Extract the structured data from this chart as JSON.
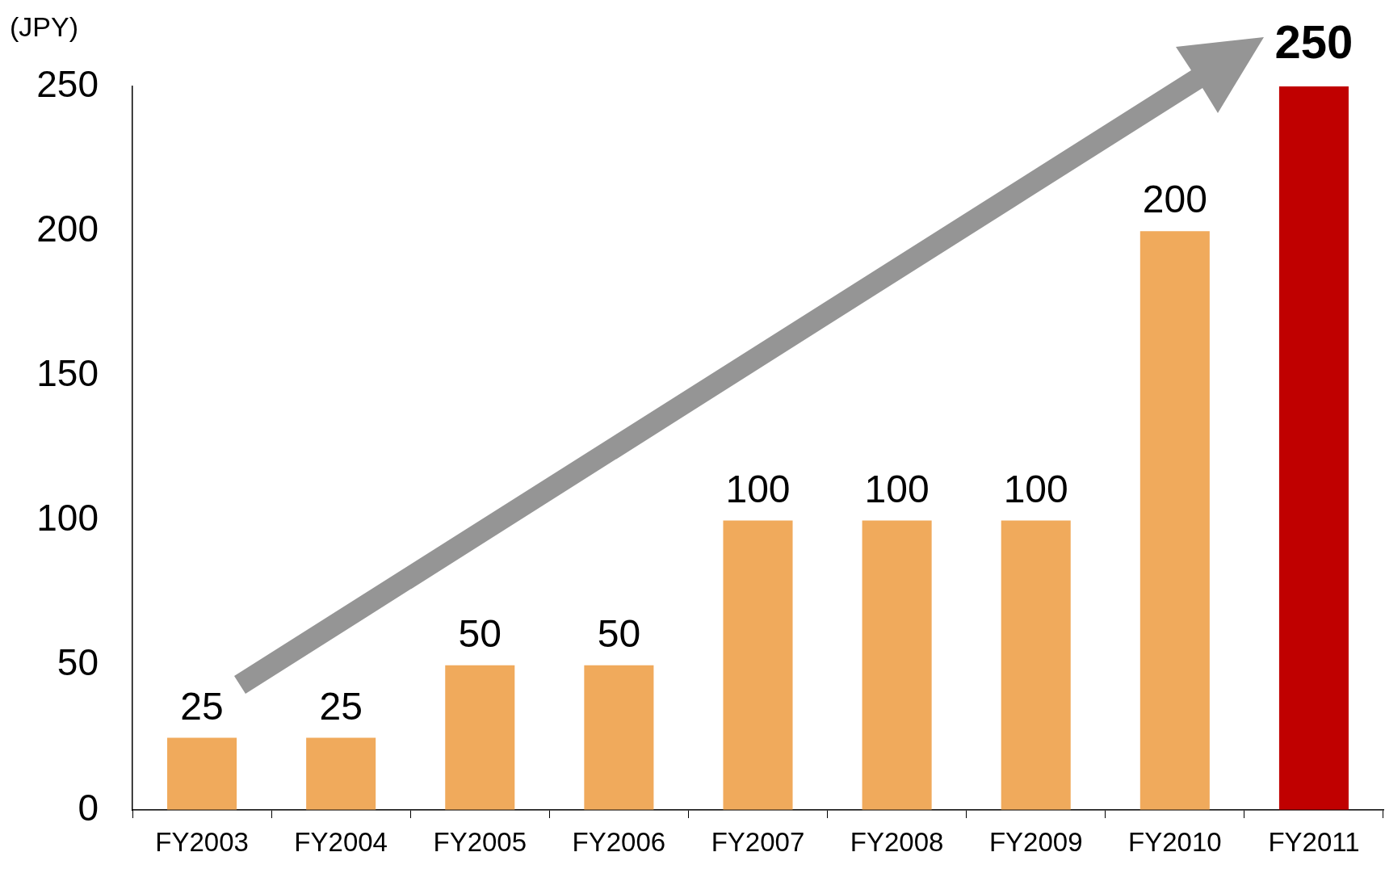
{
  "chart_data": {
    "type": "bar",
    "ylabel": "(JPY)",
    "categories": [
      "FY2003",
      "FY2004",
      "FY2005",
      "FY2006",
      "FY2007",
      "FY2008",
      "FY2009",
      "FY2010",
      "FY2011"
    ],
    "values": [
      25,
      25,
      50,
      50,
      100,
      100,
      100,
      200,
      250
    ],
    "colors": [
      "#f0aa5c",
      "#f0aa5c",
      "#f0aa5c",
      "#f0aa5c",
      "#f0aa5c",
      "#f0aa5c",
      "#f0aa5c",
      "#f0aa5c",
      "#c00000"
    ],
    "ylim": [
      0,
      250
    ],
    "yticks": [
      0,
      50,
      100,
      150,
      200,
      250
    ],
    "grid": false,
    "legend": false,
    "data_labels": true
  }
}
